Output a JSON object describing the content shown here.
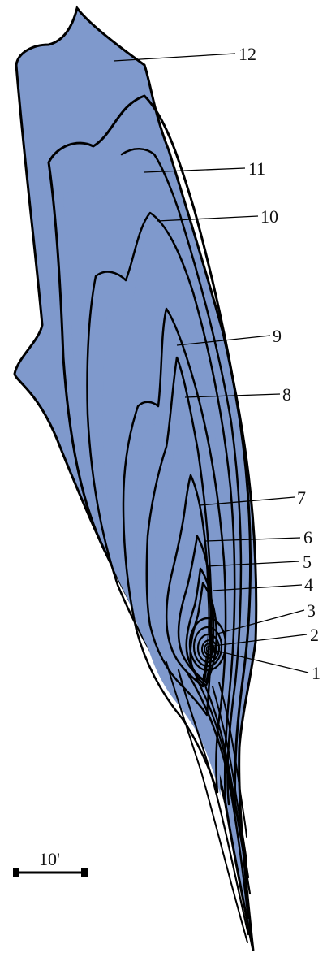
{
  "figure": {
    "labels": [
      "1",
      "2",
      "3",
      "4",
      "5",
      "6",
      "7",
      "8",
      "9",
      "10",
      "11",
      "12"
    ],
    "scale_bar_label": "10'",
    "colors": {
      "fill": "#7f99cc",
      "line": "#000000",
      "background": "#ffffff"
    }
  }
}
